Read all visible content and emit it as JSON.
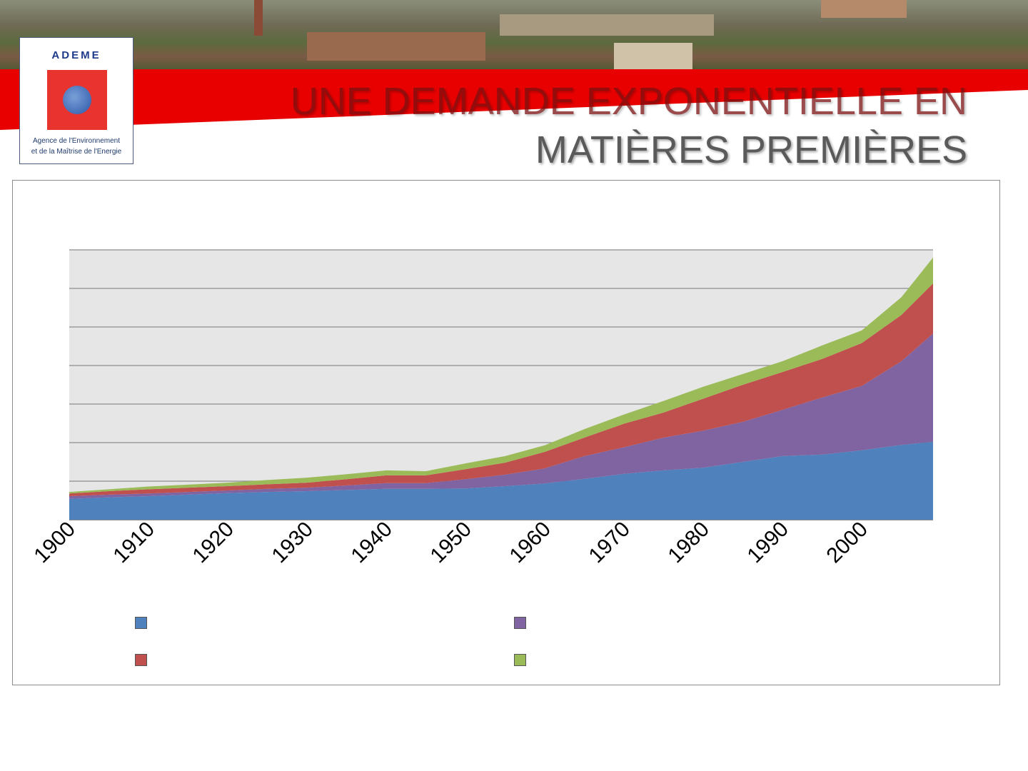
{
  "logo": {
    "name": "ADEME",
    "subtitle_line1": "Agence de l'Environnement",
    "subtitle_line2": "et de la Maîtrise de l'Energie"
  },
  "title": {
    "line1": "UNE DEMANDE EXPONENTIELLE EN",
    "line2": "MATIÈRES PREMIÈRES"
  },
  "chart_data": {
    "type": "area",
    "stacked": true,
    "title": "",
    "xlabel": "",
    "ylabel": "",
    "ylim": [
      0,
      70
    ],
    "grid": true,
    "x": [
      1900,
      1905,
      1910,
      1915,
      1920,
      1925,
      1930,
      1935,
      1940,
      1945,
      1950,
      1955,
      1960,
      1965,
      1970,
      1975,
      1980,
      1985,
      1990,
      1995,
      2000,
      2005,
      2009
    ],
    "x_ticks": [
      "1900",
      "1910",
      "1920",
      "1930",
      "1940",
      "1950",
      "1960",
      "1970",
      "1980",
      "1990",
      "2000"
    ],
    "legend_placement": "bottom",
    "series": [
      {
        "color": "#4f81bd",
        "values": [
          5.4,
          5.8,
          6.1,
          6.5,
          6.9,
          7.2,
          7.4,
          7.7,
          8.0,
          8.0,
          8.1,
          8.7,
          9.4,
          10.6,
          11.9,
          12.8,
          13.5,
          15.0,
          16.5,
          16.9,
          18.0,
          19.4,
          20.2
        ]
      },
      {
        "color": "#8064a2",
        "values": [
          0.7,
          0.7,
          0.7,
          0.7,
          0.7,
          0.8,
          0.9,
          1.2,
          1.5,
          1.5,
          2.4,
          3.0,
          3.9,
          5.9,
          6.9,
          8.5,
          9.6,
          10.4,
          12.0,
          14.8,
          16.7,
          21.7,
          28.1
        ]
      },
      {
        "color": "#c0504d",
        "values": [
          0.7,
          0.9,
          1.1,
          1.1,
          1.1,
          1.2,
          1.3,
          1.6,
          2.0,
          2.0,
          2.6,
          3.1,
          4.3,
          4.8,
          6.1,
          6.5,
          8.3,
          9.6,
          9.8,
          10.0,
          11.1,
          12.0,
          13.0
        ]
      },
      {
        "color": "#9bbb59",
        "values": [
          0.4,
          0.5,
          0.7,
          0.8,
          0.9,
          1.1,
          1.3,
          1.3,
          1.3,
          1.1,
          1.5,
          1.7,
          1.7,
          2.2,
          2.4,
          3.0,
          3.1,
          2.8,
          2.8,
          3.5,
          3.3,
          4.6,
          6.7
        ]
      }
    ]
  }
}
